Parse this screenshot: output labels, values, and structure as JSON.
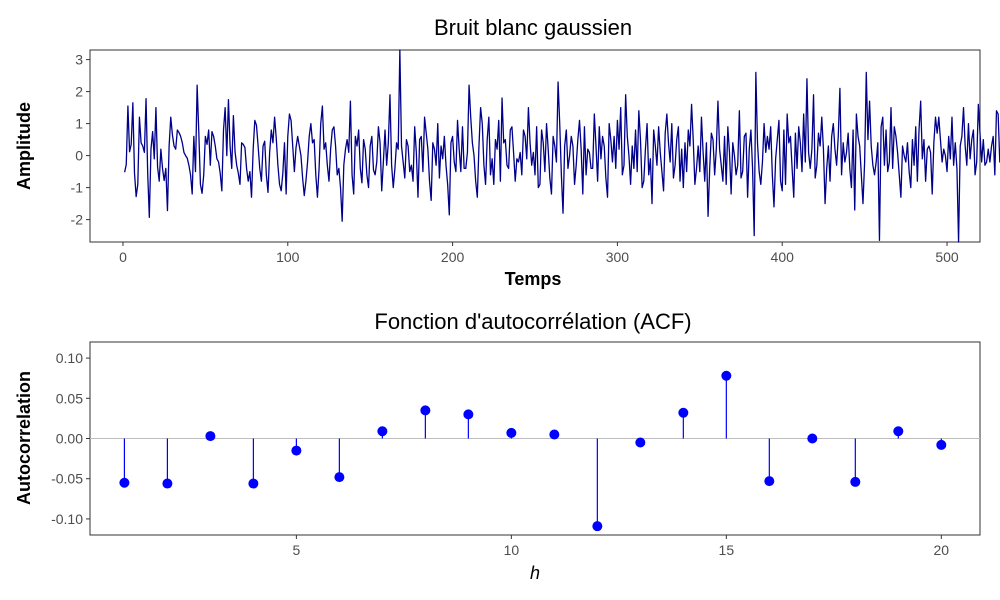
{
  "chart_data": [
    {
      "type": "line",
      "title": "Bruit blanc gaussien",
      "xlabel": "Temps",
      "ylabel": "Amplitude",
      "xlim": [
        -20,
        520
      ],
      "ylim": [
        -2.7,
        3.3
      ],
      "x_ticks": [
        0,
        100,
        200,
        300,
        400,
        500
      ],
      "y_ticks": [
        -2,
        -1,
        0,
        1,
        2,
        3
      ],
      "line_color": "#00008B",
      "grid": false,
      "series": [
        {
          "x_start": 1,
          "x_step": 1,
          "values": [
            -0.52,
            -0.28,
            1.55,
            0.12,
            0.35,
            1.65,
            -0.55,
            -1.28,
            -0.9,
            1.2,
            0.4,
            0.3,
            0.1,
            1.78,
            -0.55,
            -1.93,
            0.2,
            0.75,
            -0.1,
            1.5,
            -0.35,
            -0.8,
            0.2,
            -0.4,
            -0.78,
            -0.4,
            -1.72,
            0.3,
            1.2,
            0.65,
            0.3,
            0.2,
            0.8,
            0.72,
            0.6,
            0.4,
            0.1,
            0.0,
            -0.08,
            -0.3,
            -0.6,
            -1.2,
            0.6,
            -0.5,
            2.2,
            0.75,
            -0.9,
            -1.18,
            -0.6,
            0.6,
            0.35,
            0.8,
            -0.3,
            0.75,
            0.6,
            0.3,
            -0.1,
            -0.2,
            -0.55,
            -1.1,
            0.8,
            1.5,
            0.0,
            1.75,
            0.3,
            -0.4,
            1.25,
            0.12,
            -0.3,
            -0.55,
            -0.9,
            0.4,
            0.35,
            0.25,
            -0.4,
            -0.8,
            -0.5,
            -1.3,
            0.2,
            1.1,
            0.95,
            0.3,
            -0.4,
            -0.8,
            0.3,
            0.45,
            -0.6,
            -1.15,
            0.1,
            0.8,
            0.4,
            1.2,
            0.55,
            -0.3,
            -0.9,
            -1.1,
            -0.55,
            0.4,
            -1.2,
            0.6,
            1.3,
            1.1,
            0.3,
            -0.5,
            0.25,
            0.6,
            0.3,
            0.0,
            -0.7,
            -1.25,
            -0.8,
            -0.2,
            0.6,
            1.0,
            0.4,
            0.5,
            -0.6,
            -1.3,
            -0.4,
            1.0,
            1.55,
            0.2,
            0.4,
            -0.3,
            -0.8,
            0.2,
            0.8,
            0.9,
            0.3,
            -0.6,
            -0.4,
            -1.0,
            -2.05,
            -0.3,
            0.2,
            0.5,
            0.1,
            1.7,
            -0.6,
            -1.2,
            0.6,
            0.3,
            0.8,
            -0.4,
            -0.85,
            0.5,
            0.2,
            -0.6,
            -1.0,
            0.3,
            0.6,
            -0.45,
            -0.6,
            -0.2,
            0.9,
            0.4,
            -1.1,
            -0.2,
            0.8,
            -0.3,
            0.4,
            1.9,
            -0.3,
            -1.0,
            -0.4,
            0.4,
            0.2,
            3.3,
            0.3,
            -0.2,
            -0.7,
            0.5,
            0.3,
            -0.5,
            -0.3,
            -0.8,
            0.9,
            0.1,
            -1.3,
            0.5,
            0.6,
            -0.5,
            1.2,
            0.7,
            0.2,
            -0.8,
            -1.4,
            0.4,
            0.2,
            -0.3,
            1.0,
            -0.7,
            0.3,
            -0.1,
            0.6,
            -0.3,
            -0.9,
            -1.85,
            0.4,
            0.6,
            -0.2,
            -0.5,
            1.1,
            0.2,
            -0.5,
            0.9,
            -0.4,
            -0.4,
            0.1,
            2.2,
            1.2,
            0.4,
            0.0,
            -0.8,
            -1.3,
            0.3,
            1.5,
            1.0,
            -0.3,
            -0.9,
            0.5,
            1.2,
            -0.6,
            -0.1,
            -0.9,
            0.5,
            0.2,
            1.1,
            -0.8,
            1.8,
            0.4,
            0.5,
            -0.3,
            -0.4,
            0.8,
            0.9,
            0.1,
            -0.8,
            -0.1,
            -0.2,
            0.1,
            -0.6,
            0.8,
            0.6,
            -0.1,
            1.5,
            0.4,
            -0.3,
            0.1,
            -0.6,
            0.9,
            -1.0,
            -0.9,
            0.8,
            0.4,
            -0.5,
            1.0,
            0.2,
            -0.7,
            -1.2,
            0.6,
            0.3,
            -0.2,
            2.3,
            1.0,
            -0.6,
            -1.8,
            0.3,
            0.8,
            -0.4,
            0.0,
            0.6,
            0.3,
            -0.9,
            -0.3,
            0.5,
            1.1,
            0.2,
            -1.2,
            0.9,
            -0.6,
            0.2,
            0.1,
            -0.4,
            -0.4,
            1.3,
            0.3,
            -0.8,
            0.9,
            -0.1,
            0.6,
            0.3,
            -0.7,
            -1.3,
            1.0,
            0.5,
            -0.2,
            0.6,
            -0.4,
            1.1,
            0.2,
            1.5,
            -0.6,
            -0.3,
            1.9,
            0.6,
            0.0,
            -0.9,
            0.3,
            -0.4,
            0.8,
            -0.5,
            1.4,
            0.5,
            -1.0,
            -0.8,
            0.2,
            1.0,
            -0.6,
            -0.1,
            -1.5,
            0.8,
            0.3,
            -0.3,
            0.9,
            0.1,
            -0.5,
            -1.1,
            0.7,
            1.3,
            0.4,
            -0.2,
            1.0,
            -0.7,
            -0.3,
            0.5,
            0.9,
            -0.8,
            0.2,
            -1.0,
            0.4,
            -0.5,
            0.8,
            0.3,
            1.6,
            0.5,
            -0.9,
            -0.4,
            0.3,
            -0.5,
            1.2,
            0.1,
            -0.8,
            0.4,
            -1.9,
            -0.4,
            0.7,
            0.5,
            -0.6,
            0.2,
            1.7,
            0.2,
            -0.3,
            -0.8,
            0.6,
            -0.9,
            0.9,
            0.1,
            -1.2,
            0.4,
            0.0,
            -0.6,
            -0.3,
            1.4,
            -0.7,
            -0.5,
            0.6,
            0.7,
            -1.3,
            0.2,
            0.8,
            -0.4,
            -2.5,
            2.6,
            0.4,
            -0.5,
            -0.9,
            -0.2,
            1.0,
            0.1,
            0.6,
            0.2,
            0.9,
            -0.6,
            -1.6,
            -0.1,
            0.5,
            1.1,
            -0.8,
            -1.1,
            0.8,
            -0.9,
            1.3,
            0.4,
            0.6,
            -0.4,
            -1.3,
            0.7,
            -0.4,
            0.9,
            0.4,
            -0.5,
            1.3,
            -0.2,
            2.4,
            0.1,
            -0.4,
            0.2,
            1.9,
            -0.7,
            -0.3,
            0.7,
            0.3,
            1.2,
            0.2,
            -1.5,
            -0.4,
            0.3,
            -0.8,
            0.6,
            1.0,
            0.2,
            -0.3,
            0.6,
            2.1,
            -0.6,
            0.4,
            -0.2,
            0.1,
            0.7,
            -0.4,
            -1.0,
            0.8,
            -1.7,
            1.3,
            0.6,
            0.3,
            -0.6,
            -1.5,
            -0.2,
            2.6,
            0.5,
            1.7,
            0.3,
            -0.3,
            -0.6,
            -0.2,
            0.4,
            -2.65,
            0.9,
            1.2,
            -0.3,
            0.8,
            -0.5,
            -0.2,
            1.5,
            -0.4,
            0.9,
            0.6,
            0.1,
            -0.6,
            -1.3,
            0.3,
            0.0,
            -0.2,
            0.4,
            -0.5,
            -1.0,
            0.5,
            -0.3,
            0.9,
            -0.8,
            0.8,
            1.7,
            -0.1,
            0.5,
            -0.8,
            0.2,
            0.3,
            0.1,
            -1.2,
            0.4,
            1.2,
            0.7,
            1.2,
            0.5,
            -0.2,
            0.2,
            0.0,
            -0.5,
            0.6,
            -0.1,
            1.2,
            -0.3,
            0.4,
            -0.4,
            -2.7,
            0.3,
            0.6,
            1.5,
            0.3,
            -0.3,
            1.0,
            -0.1,
            0.5,
            0.8,
            -0.6,
            -0.2,
            1.6,
            0.7,
            -0.2,
            0.5,
            -0.3,
            -0.2,
            0.2,
            -0.2,
            0.3,
            0.6,
            -0.6,
            1.4,
            1.3,
            -0.2,
            0.3,
            0.6,
            1.5,
            1.8,
            0.1,
            1.2,
            -0.4,
            -0.2,
            0.3,
            0.5,
            -0.2,
            -0.9,
            0.7,
            -1.2,
            -0.9,
            1.1,
            -0.3,
            0.2,
            0.1,
            -0.7,
            -0.5,
            -0.3,
            1.4,
            -0.3,
            -1.0,
            -0.9,
            -1.3,
            -0.1,
            0.1,
            0.3,
            0.5
          ]
        }
      ]
    },
    {
      "type": "scatter",
      "subtype": "lollipop",
      "title": "Fonction d'autocorrélation (ACF)",
      "xlabel": "h",
      "ylabel": "Autocorrelation",
      "xlim": [
        0.2,
        20.9
      ],
      "ylim": [
        -0.12,
        0.12
      ],
      "x_ticks": [
        5,
        10,
        15,
        20
      ],
      "y_ticks": [
        -0.1,
        -0.05,
        0.0,
        0.05,
        0.1
      ],
      "y_tick_labels": [
        "-0.10",
        "-0.05",
        "0.00",
        "0.05",
        "0.10"
      ],
      "marker_color": "#0000FF",
      "reference_line": 0,
      "reference_line_color": "#bdbdbd",
      "grid": false,
      "x": [
        1,
        2,
        3,
        4,
        5,
        6,
        7,
        8,
        9,
        10,
        11,
        12,
        13,
        14,
        15,
        16,
        17,
        18,
        19,
        20
      ],
      "values": [
        -0.055,
        -0.056,
        0.003,
        -0.056,
        -0.015,
        -0.048,
        0.009,
        0.035,
        0.03,
        0.007,
        0.005,
        -0.109,
        -0.005,
        0.032,
        0.078,
        -0.053,
        0.0,
        -0.054,
        0.009,
        -0.008
      ]
    }
  ]
}
